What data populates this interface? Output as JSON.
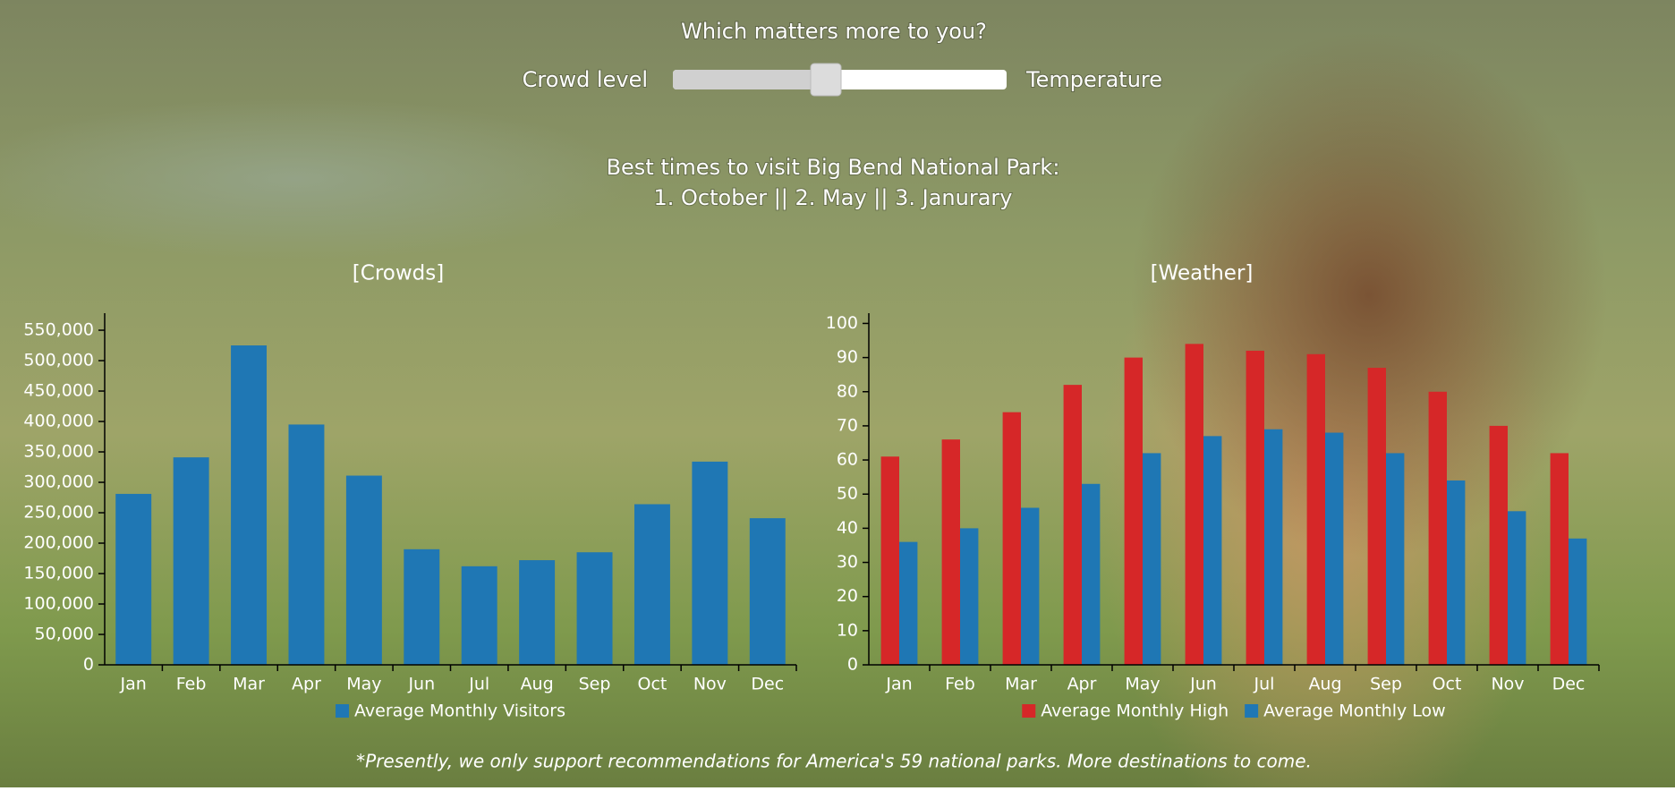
{
  "header": {
    "question": "Which matters more to you?",
    "slider_left": "Crowd level",
    "slider_right": "Temperature"
  },
  "recommendation": {
    "line1": "Best times to visit Big Bend National Park:",
    "line2": "1. October || 2. May || 3. Janurary"
  },
  "chart_data": [
    {
      "type": "bar",
      "title": "[Crowds]",
      "categories": [
        "Jan",
        "Feb",
        "Mar",
        "Apr",
        "May",
        "Jun",
        "Jul",
        "Aug",
        "Sep",
        "Oct",
        "Nov",
        "Dec"
      ],
      "series": [
        {
          "name": "Average Monthly Visitors",
          "color": "#1f77b4",
          "values": [
            281000,
            341000,
            525000,
            395000,
            311000,
            190000,
            162000,
            172000,
            185000,
            264000,
            334000,
            241000
          ]
        }
      ],
      "ylim": [
        0,
        578000
      ],
      "yticks": [
        0,
        {
          "value": 50000,
          "label": "50,000"
        },
        {
          "value": 100000,
          "label": "100,000"
        },
        {
          "value": 150000,
          "label": "150,000"
        },
        {
          "value": 200000,
          "label": "200,000"
        },
        {
          "value": 250000,
          "label": "250,000"
        },
        {
          "value": 300000,
          "label": "300,000"
        },
        {
          "value": 350000,
          "label": "350,000"
        },
        {
          "value": 400000,
          "label": "400,000"
        },
        {
          "value": 450000,
          "label": "450,000"
        },
        {
          "value": 500000,
          "label": "500,000"
        },
        {
          "value": 550000,
          "label": "550,000"
        }
      ]
    },
    {
      "type": "bar",
      "title": "[Weather]",
      "categories": [
        "Jan",
        "Feb",
        "Mar",
        "Apr",
        "May",
        "Jun",
        "Jul",
        "Aug",
        "Sep",
        "Oct",
        "Nov",
        "Dec"
      ],
      "series": [
        {
          "name": "Average Monthly High",
          "color": "#d62728",
          "values": [
            61,
            66,
            74,
            82,
            90,
            94,
            92,
            91,
            87,
            80,
            70,
            62
          ]
        },
        {
          "name": "Average Monthly Low",
          "color": "#1f77b4",
          "values": [
            36,
            40,
            46,
            53,
            62,
            67,
            69,
            68,
            62,
            54,
            45,
            37
          ]
        }
      ],
      "ylim": [
        0,
        103
      ],
      "yticks": [
        0,
        10,
        20,
        30,
        40,
        50,
        60,
        70,
        80,
        90,
        100
      ]
    }
  ],
  "footnote": "*Presently, we only support recommendations for America's 59 national parks. More destinations to come."
}
